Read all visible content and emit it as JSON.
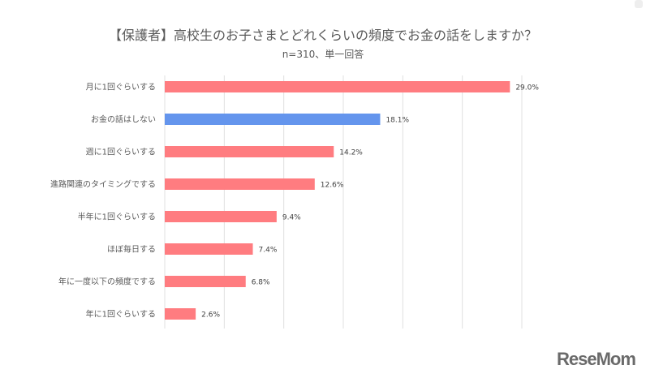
{
  "chart_data": {
    "type": "bar",
    "orientation": "horizontal",
    "title": "【保護者】高校生のお子さまとどれくらいの頻度でお金の話をしますか？",
    "subtitle": "n=310、単一回答",
    "categories": [
      "月に1回ぐらいする",
      "お金の話はしない",
      "週に1回ぐらいする",
      "進路関連のタイミングでする",
      "半年に1回ぐらいする",
      "ほぼ毎日する",
      "年に一度以下の頻度でする",
      "年に1回ぐらいする"
    ],
    "values": [
      29.0,
      18.1,
      14.2,
      12.6,
      9.4,
      7.4,
      6.8,
      2.6
    ],
    "data_labels": [
      "29.0%",
      "18.1%",
      "14.2%",
      "12.6%",
      "9.4%",
      "7.4%",
      "6.8%",
      "2.6%"
    ],
    "highlight_index": 1,
    "xlim": [
      0,
      30
    ],
    "grid": true,
    "colors": {
      "default": "#ff7c80",
      "highlight": "#6495ed",
      "grid": "#e0e0e0"
    }
  },
  "logo": "ReseMom"
}
